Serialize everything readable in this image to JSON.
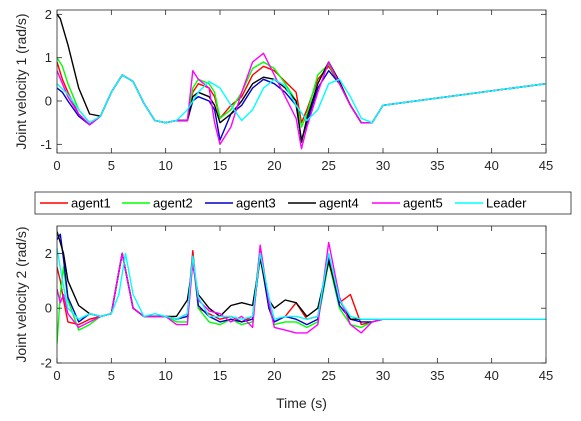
{
  "chart_data": [
    {
      "type": "line",
      "title": "",
      "xlabel": "",
      "ylabel": "Joint velocity 1 (rad/s)",
      "xlim": [
        0,
        45
      ],
      "ylim": [
        -1.2,
        2.1
      ],
      "xticks": [
        0,
        5,
        10,
        15,
        20,
        25,
        30,
        35,
        40,
        45
      ],
      "yticks": [
        -1,
        0,
        1,
        2
      ],
      "grid": false,
      "series": [
        {
          "name": "agent1",
          "color": "#ff0000",
          "x": [
            0,
            0.5,
            1,
            2,
            3,
            4,
            5,
            6,
            7,
            8,
            9,
            10,
            11,
            12,
            12.5,
            13,
            14,
            14.5,
            15,
            16,
            17,
            18,
            19,
            20,
            21,
            22,
            22.5,
            23,
            24,
            25,
            26,
            27,
            28,
            29,
            30,
            45
          ],
          "y": [
            0.9,
            0.5,
            0.2,
            -0.3,
            -0.55,
            -0.35,
            0.2,
            0.6,
            0.45,
            -0.05,
            -0.45,
            -0.5,
            -0.45,
            -0.45,
            0.2,
            0.4,
            0.3,
            0.1,
            -0.4,
            -0.1,
            0.1,
            0.6,
            0.8,
            0.7,
            0.45,
            0.2,
            -0.5,
            -0.2,
            0.5,
            0.8,
            0.4,
            -0.1,
            -0.5,
            -0.5,
            -0.1,
            0.4
          ]
        },
        {
          "name": "agent2",
          "color": "#00ff00",
          "x": [
            0,
            0.5,
            1,
            2,
            3,
            4,
            5,
            6,
            7,
            8,
            9,
            10,
            11,
            12,
            12.5,
            13,
            14,
            14.5,
            15,
            16,
            17,
            18,
            19,
            20,
            21,
            22,
            22.5,
            23,
            24,
            25,
            26,
            27,
            28,
            29,
            30,
            45
          ],
          "y": [
            1.0,
            0.8,
            0.4,
            -0.2,
            -0.5,
            -0.35,
            0.2,
            0.6,
            0.45,
            -0.05,
            -0.45,
            -0.5,
            -0.45,
            -0.45,
            0.3,
            0.5,
            0.4,
            0.2,
            -0.4,
            -0.2,
            0.2,
            0.75,
            0.9,
            0.75,
            0.4,
            0.0,
            -0.6,
            -0.3,
            0.6,
            0.85,
            0.4,
            -0.1,
            -0.5,
            -0.5,
            -0.1,
            0.4
          ]
        },
        {
          "name": "agent3",
          "color": "#0000cc",
          "x": [
            0,
            0.5,
            1,
            2,
            3,
            4,
            5,
            6,
            7,
            8,
            9,
            10,
            11,
            12,
            12.5,
            13,
            14,
            14.5,
            15,
            16,
            17,
            18,
            19,
            20,
            21,
            22,
            22.5,
            23,
            24,
            25,
            26,
            27,
            28,
            29,
            30,
            45
          ],
          "y": [
            0.3,
            0.2,
            0.0,
            -0.35,
            -0.55,
            -0.35,
            0.2,
            0.6,
            0.45,
            -0.05,
            -0.45,
            -0.5,
            -0.45,
            -0.45,
            0.0,
            0.1,
            0.0,
            -0.2,
            -0.9,
            -0.3,
            -0.1,
            0.3,
            0.5,
            0.4,
            0.2,
            -0.1,
            -0.9,
            -0.5,
            0.3,
            0.7,
            0.4,
            -0.1,
            -0.5,
            -0.5,
            -0.1,
            0.4
          ]
        },
        {
          "name": "agent4",
          "color": "#000000",
          "x": [
            0,
            0.3,
            1,
            2,
            3,
            4,
            5,
            6,
            7,
            8,
            9,
            10,
            11,
            12,
            12.5,
            13,
            14,
            14.5,
            15,
            16,
            17,
            18,
            19,
            20,
            21,
            22,
            22.5,
            23,
            24,
            25,
            26,
            27,
            28,
            29,
            30,
            45
          ],
          "y": [
            2.0,
            1.9,
            1.3,
            0.3,
            -0.3,
            -0.35,
            0.2,
            0.6,
            0.45,
            -0.05,
            -0.45,
            -0.5,
            -0.45,
            -0.45,
            0.1,
            0.2,
            0.1,
            -0.1,
            -0.5,
            -0.3,
            0.0,
            0.4,
            0.55,
            0.5,
            0.3,
            0.0,
            -0.95,
            -0.4,
            0.4,
            0.9,
            0.45,
            -0.1,
            -0.5,
            -0.5,
            -0.1,
            0.4
          ]
        },
        {
          "name": "agent5",
          "color": "#ff00ff",
          "x": [
            0,
            0.5,
            1,
            2,
            3,
            4,
            5,
            6,
            7,
            8,
            9,
            10,
            11,
            12,
            12.5,
            13,
            14,
            14.5,
            15,
            16,
            17,
            18,
            19,
            20,
            21,
            22,
            22.5,
            23,
            24,
            25,
            26,
            27,
            28,
            29,
            30,
            45
          ],
          "y": [
            0.7,
            0.4,
            0.1,
            -0.3,
            -0.55,
            -0.35,
            0.2,
            0.6,
            0.45,
            -0.05,
            -0.45,
            -0.5,
            -0.45,
            -0.45,
            0.7,
            0.5,
            0.3,
            -0.5,
            -1.0,
            -0.6,
            0.2,
            0.9,
            1.1,
            0.6,
            0.1,
            -0.4,
            -1.1,
            -0.6,
            0.2,
            0.9,
            0.4,
            -0.1,
            -0.5,
            -0.5,
            -0.1,
            0.4
          ]
        },
        {
          "name": "Leader",
          "color": "#00ffff",
          "x": [
            0,
            1,
            2,
            3,
            4,
            5,
            6,
            7,
            8,
            9,
            10,
            11,
            12,
            13,
            14,
            15,
            16,
            17,
            18,
            19,
            20,
            21,
            22,
            23,
            24,
            25,
            26,
            27,
            28,
            29,
            30,
            45
          ],
          "y": [
            0.4,
            0.15,
            -0.2,
            -0.5,
            -0.35,
            0.2,
            0.6,
            0.45,
            -0.05,
            -0.45,
            -0.5,
            -0.45,
            -0.2,
            0.2,
            0.45,
            0.3,
            -0.1,
            -0.45,
            -0.2,
            0.3,
            0.5,
            0.35,
            -0.1,
            -0.45,
            -0.2,
            0.4,
            0.5,
            0.1,
            -0.4,
            -0.5,
            -0.1,
            0.4
          ]
        }
      ]
    },
    {
      "type": "line",
      "title": "",
      "xlabel": "Time (s)",
      "ylabel": "Joint velocity 2 (rad/s)",
      "xlim": [
        0,
        45
      ],
      "ylim": [
        -2.0,
        3.0
      ],
      "xticks": [
        0,
        5,
        10,
        15,
        20,
        25,
        30,
        35,
        40,
        45
      ],
      "yticks": [
        -2,
        0,
        2
      ],
      "grid": false,
      "series": [
        {
          "name": "agent1",
          "color": "#ff0000",
          "x": [
            0,
            0.3,
            0.6,
            1,
            2,
            3,
            4,
            5,
            6,
            7,
            8,
            9,
            10,
            11,
            12,
            12.5,
            13,
            14,
            15,
            16,
            17,
            18,
            18.7,
            19.5,
            20,
            21,
            22,
            23,
            24,
            25,
            26,
            27,
            28,
            29,
            30,
            45
          ],
          "y": [
            1.5,
            1.0,
            0.3,
            -0.5,
            -0.6,
            -0.4,
            -0.3,
            -0.2,
            2.0,
            0.0,
            -0.3,
            -0.3,
            -0.3,
            -0.4,
            -0.2,
            2.1,
            0.0,
            -0.2,
            -0.4,
            -0.3,
            -0.5,
            -0.3,
            2.2,
            0.0,
            -0.5,
            -0.3,
            0.2,
            -0.4,
            -0.3,
            1.9,
            0.2,
            0.5,
            -0.6,
            -0.5,
            -0.4,
            -0.4
          ]
        },
        {
          "name": "agent2",
          "color": "#00ff00",
          "x": [
            0,
            0.3,
            0.6,
            1,
            2,
            3,
            4,
            5,
            6,
            7,
            8,
            9,
            10,
            11,
            12,
            12.5,
            13,
            14,
            15,
            16,
            17,
            18,
            18.7,
            19.5,
            20,
            21,
            22,
            23,
            24,
            25,
            26,
            27,
            28,
            29,
            30,
            45
          ],
          "y": [
            -1.3,
            0.5,
            1.5,
            0.3,
            -0.8,
            -0.6,
            -0.3,
            -0.2,
            2.0,
            0.0,
            -0.3,
            -0.3,
            -0.3,
            -0.5,
            -0.5,
            1.8,
            0.0,
            -0.5,
            -0.6,
            -0.4,
            -0.6,
            -0.5,
            2.0,
            0.0,
            -0.6,
            -0.5,
            -0.5,
            -0.7,
            -0.5,
            1.7,
            0.0,
            -0.6,
            -0.7,
            -0.5,
            -0.4,
            -0.4
          ]
        },
        {
          "name": "agent3",
          "color": "#0000cc",
          "x": [
            0,
            0.3,
            0.6,
            1,
            2,
            3,
            4,
            5,
            6,
            7,
            8,
            9,
            10,
            11,
            12,
            12.5,
            13,
            14,
            15,
            16,
            17,
            18,
            18.7,
            19.5,
            20,
            21,
            22,
            23,
            24,
            25,
            26,
            27,
            28,
            29,
            30,
            45
          ],
          "y": [
            2.5,
            2.7,
            1.8,
            0.4,
            -0.5,
            -0.2,
            -0.3,
            -0.2,
            2.0,
            0.0,
            -0.3,
            -0.3,
            -0.3,
            -0.4,
            -0.3,
            1.9,
            0.1,
            -0.3,
            -0.5,
            -0.4,
            -0.5,
            -0.4,
            1.9,
            0.0,
            -0.5,
            -0.3,
            -0.4,
            -0.6,
            -0.4,
            1.8,
            0.1,
            -0.4,
            -0.5,
            -0.5,
            -0.4,
            -0.4
          ]
        },
        {
          "name": "agent4",
          "color": "#000000",
          "x": [
            0,
            0.3,
            0.6,
            1,
            2,
            3,
            4,
            5,
            6,
            7,
            8,
            9,
            10,
            11,
            12,
            12.5,
            13,
            14,
            15,
            16,
            17,
            18,
            18.7,
            19.5,
            20,
            21,
            22,
            23,
            24,
            25,
            26,
            27,
            28,
            29,
            30,
            45
          ],
          "y": [
            2.8,
            2.4,
            2.0,
            1.0,
            0.1,
            -0.2,
            -0.3,
            -0.2,
            2.0,
            0.0,
            -0.3,
            -0.3,
            -0.3,
            -0.3,
            0.3,
            1.6,
            0.5,
            0.0,
            -0.3,
            0.1,
            0.2,
            0.1,
            1.8,
            0.3,
            0.0,
            0.3,
            0.2,
            -0.3,
            0.0,
            1.7,
            0.3,
            -0.4,
            -0.4,
            -0.4,
            -0.4,
            -0.4
          ]
        },
        {
          "name": "agent5",
          "color": "#ff00ff",
          "x": [
            0,
            0.3,
            0.6,
            1,
            2,
            3,
            4,
            5,
            6,
            7,
            8,
            9,
            10,
            11,
            12,
            12.5,
            13,
            14,
            15,
            16,
            17,
            18,
            18.7,
            19.5,
            20,
            21,
            22,
            23,
            24,
            25,
            26,
            27,
            28,
            29,
            30,
            45
          ],
          "y": [
            0.7,
            0.2,
            0.5,
            -0.2,
            -0.7,
            -0.5,
            -0.3,
            -0.2,
            2.0,
            0.0,
            -0.3,
            -0.3,
            -0.3,
            -0.6,
            -0.6,
            1.7,
            0.3,
            -0.1,
            -0.2,
            -0.5,
            -0.3,
            -0.7,
            2.3,
            0.2,
            -0.7,
            -0.8,
            -0.9,
            -0.9,
            -0.6,
            2.4,
            0.4,
            -0.6,
            -0.9,
            -0.5,
            -0.4,
            -0.4
          ]
        },
        {
          "name": "Leader",
          "color": "#00ffff",
          "x": [
            0,
            0.5,
            1,
            2,
            3,
            4,
            5,
            5.7,
            6.3,
            7,
            8,
            9,
            10,
            11,
            12,
            12.5,
            13,
            14,
            15,
            16,
            17,
            18,
            18.7,
            19.5,
            20,
            21,
            22,
            23,
            24,
            25,
            26,
            27,
            28,
            29,
            30,
            45
          ],
          "y": [
            2.2,
            1.0,
            0.0,
            -0.4,
            -0.2,
            -0.3,
            -0.2,
            0.5,
            2.0,
            0.5,
            -0.3,
            -0.2,
            -0.3,
            -0.4,
            -0.2,
            1.9,
            0.4,
            -0.3,
            -0.3,
            -0.3,
            -0.4,
            -0.3,
            2.0,
            0.4,
            -0.4,
            -0.3,
            -0.3,
            -0.4,
            -0.3,
            2.0,
            0.3,
            -0.3,
            -0.4,
            -0.4,
            -0.4,
            -0.4
          ]
        }
      ]
    }
  ],
  "legend": {
    "items": [
      "agent1",
      "agent2",
      "agent3",
      "agent4",
      "agent5",
      "Leader"
    ],
    "colors": [
      "#ff0000",
      "#00ff00",
      "#0000cc",
      "#000000",
      "#ff00ff",
      "#00ffff"
    ]
  }
}
